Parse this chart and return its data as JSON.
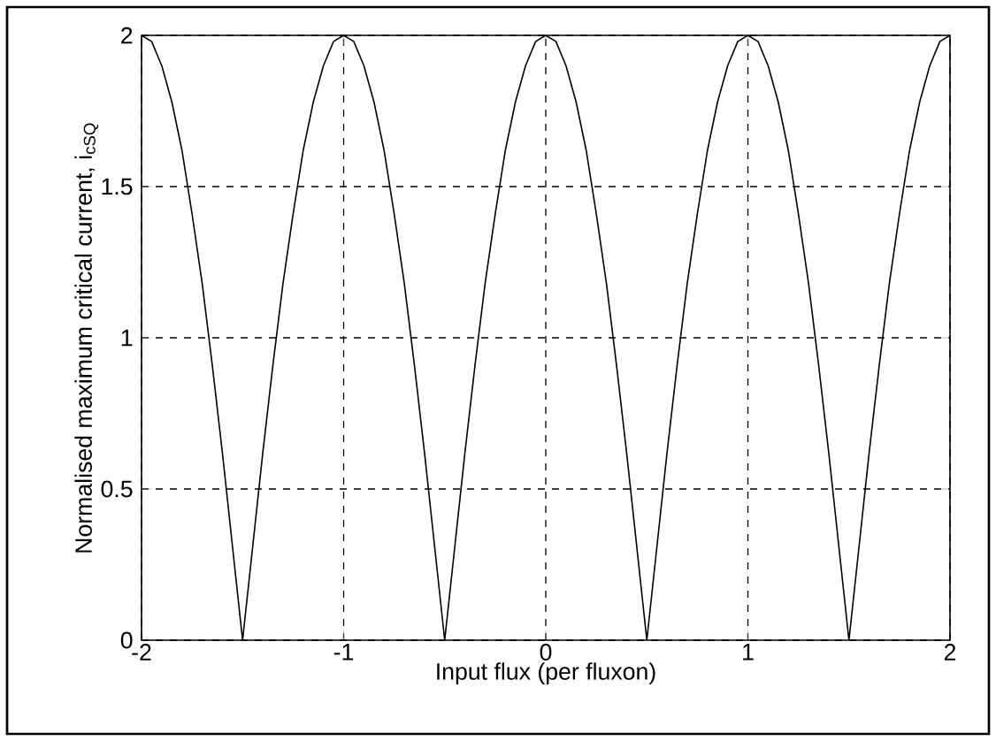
{
  "chart_data": {
    "type": "line",
    "xlabel": "Input flux (per fluxon)",
    "ylabel": "Normalised maximum critical current, i$_{cSQ}$",
    "x": [
      -2,
      -1.95,
      -1.9,
      -1.85,
      -1.8,
      -1.75,
      -1.7,
      -1.65,
      -1.6,
      -1.55,
      -1.5,
      -1.45,
      -1.4,
      -1.35,
      -1.3,
      -1.25,
      -1.2,
      -1.15,
      -1.1,
      -1.05,
      -1,
      -0.95,
      -0.9,
      -0.85,
      -0.8,
      -0.75,
      -0.7,
      -0.65,
      -0.6,
      -0.55,
      -0.5,
      -0.45,
      -0.4,
      -0.35,
      -0.3,
      -0.25,
      -0.2,
      -0.15,
      -0.1,
      -0.05,
      0,
      0.05,
      0.1,
      0.15,
      0.2,
      0.25,
      0.3,
      0.35,
      0.4,
      0.45,
      0.5,
      0.55,
      0.6,
      0.65,
      0.7,
      0.75,
      0.8,
      0.85,
      0.9,
      0.95,
      1,
      1.05,
      1.1,
      1.15,
      1.2,
      1.25,
      1.3,
      1.35,
      1.4,
      1.45,
      1.5,
      1.55,
      1.6,
      1.65,
      1.7,
      1.75,
      1.8,
      1.85,
      1.9,
      1.95,
      2
    ],
    "series": [
      {
        "color": "#000000",
        "values": [
          2,
          1.98,
          1.9,
          1.78,
          1.62,
          1.41,
          1.18,
          0.91,
          0.62,
          0.31,
          0,
          0.31,
          0.62,
          0.91,
          1.18,
          1.41,
          1.62,
          1.78,
          1.9,
          1.98,
          2,
          1.98,
          1.9,
          1.78,
          1.62,
          1.41,
          1.18,
          0.91,
          0.62,
          0.31,
          0,
          0.31,
          0.62,
          0.91,
          1.18,
          1.41,
          1.62,
          1.78,
          1.9,
          1.98,
          2,
          1.98,
          1.9,
          1.78,
          1.62,
          1.41,
          1.18,
          0.91,
          0.62,
          0.31,
          0,
          0.31,
          0.62,
          0.91,
          1.18,
          1.41,
          1.62,
          1.78,
          1.9,
          1.98,
          2,
          1.98,
          1.9,
          1.78,
          1.62,
          1.41,
          1.18,
          0.91,
          0.62,
          0.31,
          0,
          0.31,
          0.62,
          0.91,
          1.18,
          1.41,
          1.62,
          1.78,
          1.9,
          1.98,
          2
        ]
      }
    ],
    "xlim": [
      -2,
      2
    ],
    "ylim": [
      0,
      2
    ],
    "xticks": [
      -2,
      -1,
      0,
      1,
      2
    ],
    "yticks": [
      0,
      0.5,
      1,
      1.5,
      2
    ],
    "grid": true,
    "line_style": "solid"
  }
}
